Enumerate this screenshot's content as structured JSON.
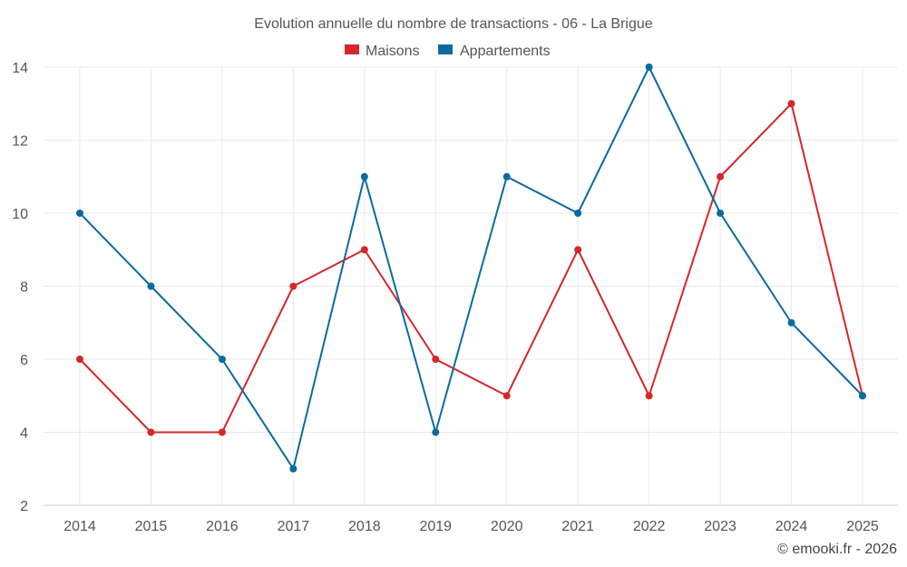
{
  "chart_data": {
    "type": "line",
    "title": "Evolution annuelle du nombre de transactions - 06 - La Brigue",
    "categories": [
      "2014",
      "2015",
      "2016",
      "2017",
      "2018",
      "2019",
      "2020",
      "2021",
      "2022",
      "2023",
      "2024",
      "2025"
    ],
    "series": [
      {
        "name": "Maisons",
        "color": "#d62728",
        "values": [
          6,
          4,
          4,
          8,
          9,
          6,
          5,
          9,
          5,
          11,
          13,
          5
        ]
      },
      {
        "name": "Appartements",
        "color": "#0b6aa2",
        "values": [
          10,
          8,
          6,
          3,
          11,
          4,
          11,
          10,
          14,
          10,
          7,
          5
        ]
      }
    ],
    "ylim": [
      2,
      14
    ],
    "yticks": [
      2,
      4,
      6,
      8,
      10,
      12,
      14
    ],
    "xlabel": "",
    "ylabel": "",
    "grid": true,
    "legend": "top-center"
  },
  "credit": "© emooki.fr - 2026"
}
